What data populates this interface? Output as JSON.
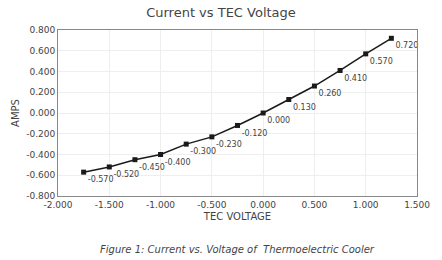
{
  "chart_data": {
    "type": "line",
    "title": "Current vs TEC Voltage",
    "xlabel": "TEC VOLTAGE",
    "ylabel": "AMPS",
    "caption": "Figure 1: Current vs. Voltage of  Thermoelectric Cooler",
    "x": [
      -1.75,
      -1.5,
      -1.25,
      -1.0,
      -0.75,
      -0.5,
      -0.25,
      0.0,
      0.25,
      0.5,
      0.75,
      1.0,
      1.25
    ],
    "values": [
      -0.57,
      -0.52,
      -0.45,
      -0.4,
      -0.3,
      -0.23,
      -0.12,
      0.0,
      0.13,
      0.26,
      0.41,
      0.57,
      0.72
    ],
    "value_labels": [
      "-0.570",
      "-0.520",
      "-0.450",
      "-0.400",
      "-0.300",
      "-0.230",
      "-0.120",
      "0.000",
      "0.130",
      "0.260",
      "0.410",
      "0.570",
      "0.720"
    ],
    "data_labels": true,
    "color": "#1a1a1a",
    "marker": "square",
    "xlim": [
      -2.0,
      1.5
    ],
    "ylim": [
      -0.8,
      0.8
    ],
    "xticks": [
      {
        "value": -2.0,
        "label": "-2.000"
      },
      {
        "value": -1.5,
        "label": "-1.500"
      },
      {
        "value": -1.0,
        "label": "-1.000"
      },
      {
        "value": -0.5,
        "label": "-0.500"
      },
      {
        "value": 0.0,
        "label": "0.000"
      },
      {
        "value": 0.5,
        "label": "0.500"
      },
      {
        "value": 1.0,
        "label": "1.000"
      },
      {
        "value": 1.5,
        "label": "1.500"
      }
    ],
    "yticks": [
      {
        "value": -0.8,
        "label": "-0.800"
      },
      {
        "value": -0.6,
        "label": "-0.600"
      },
      {
        "value": -0.4,
        "label": "-0.400"
      },
      {
        "value": -0.2,
        "label": "-0.200"
      },
      {
        "value": 0.0,
        "label": "0.000"
      },
      {
        "value": 0.2,
        "label": "0.200"
      },
      {
        "value": 0.4,
        "label": "0.400"
      },
      {
        "value": 0.6,
        "label": "0.600"
      },
      {
        "value": 0.8,
        "label": "0.800"
      }
    ],
    "grid": true
  }
}
